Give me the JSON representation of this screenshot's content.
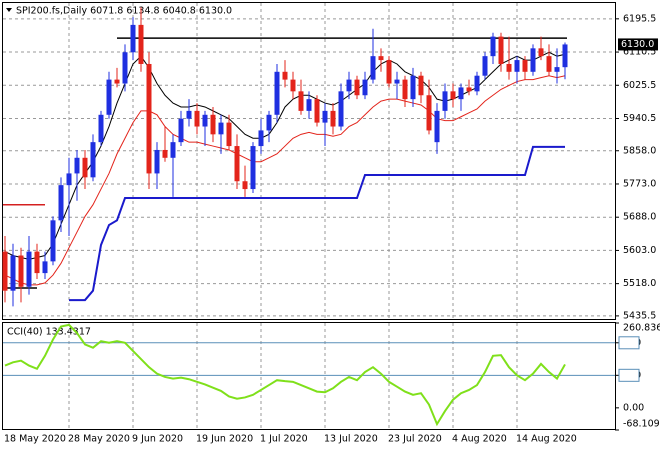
{
  "chart_data": [
    {
      "type": "candlestick",
      "title": "SPI200.fs,Daily  6071.8 6134.8 6040.8 6130.0",
      "up_color": "#1f2fe0",
      "down_color": "#e3241b",
      "categories": [
        "18 May 2020",
        null,
        null,
        null,
        null,
        null,
        null,
        null,
        "28 May 2020",
        null,
        null,
        null,
        null,
        null,
        null,
        null,
        "9 Jun 2020",
        null,
        null,
        null,
        null,
        null,
        null,
        null,
        "19 Jun 2020",
        null,
        null,
        null,
        null,
        null,
        null,
        null,
        "1 Jul 2020",
        null,
        null,
        null,
        null,
        null,
        null,
        null,
        "13 Jul 2020",
        null,
        null,
        null,
        null,
        null,
        null,
        null,
        "23 Jul 2020",
        null,
        null,
        null,
        null,
        null,
        null,
        null,
        "4 Aug 2020",
        null,
        null,
        null,
        null,
        null,
        null,
        null,
        "14 Aug 2020",
        null,
        null,
        null,
        null,
        null,
        null
      ],
      "ohlc": [
        [
          5600,
          5640,
          5470,
          5500
        ],
        [
          5500,
          5620,
          5460,
          5590
        ],
        [
          5590,
          5610,
          5470,
          5510
        ],
        [
          5510,
          5640,
          5490,
          5600
        ],
        [
          5600,
          5620,
          5530,
          5545
        ],
        [
          5545,
          5600,
          5530,
          5575
        ],
        [
          5575,
          5690,
          5565,
          5680
        ],
        [
          5680,
          5790,
          5650,
          5770
        ],
        [
          5770,
          5840,
          5640,
          5800
        ],
        [
          5800,
          5860,
          5730,
          5840
        ],
        [
          5840,
          5860,
          5760,
          5790
        ],
        [
          5790,
          5900,
          5780,
          5880
        ],
        [
          5880,
          5960,
          5870,
          5950
        ],
        [
          5950,
          6060,
          5940,
          6040
        ],
        [
          6040,
          6070,
          6020,
          6030
        ],
        [
          6030,
          6130,
          6010,
          6110
        ],
        [
          6110,
          6200,
          6090,
          6180
        ],
        [
          6180,
          6225,
          6060,
          6080
        ],
        [
          6080,
          6110,
          5760,
          5800
        ],
        [
          5800,
          5880,
          5760,
          5860
        ],
        [
          5860,
          5920,
          5830,
          5840
        ],
        [
          5840,
          5900,
          5740,
          5880
        ],
        [
          5880,
          5960,
          5870,
          5940
        ],
        [
          5940,
          5990,
          5920,
          5960
        ],
        [
          5960,
          5980,
          5900,
          5920
        ],
        [
          5920,
          5960,
          5870,
          5950
        ],
        [
          5950,
          5970,
          5880,
          5900
        ],
        [
          5900,
          5950,
          5850,
          5930
        ],
        [
          5930,
          5950,
          5860,
          5870
        ],
        [
          5870,
          5900,
          5760,
          5780
        ],
        [
          5780,
          5820,
          5740,
          5760
        ],
        [
          5760,
          5880,
          5750,
          5870
        ],
        [
          5870,
          5940,
          5850,
          5910
        ],
        [
          5910,
          5960,
          5880,
          5950
        ],
        [
          5950,
          6080,
          5930,
          6060
        ],
        [
          6060,
          6090,
          6020,
          6040
        ],
        [
          6040,
          6060,
          5990,
          6010
        ],
        [
          6010,
          6040,
          5950,
          5960
        ],
        [
          5960,
          6010,
          5940,
          5990
        ],
        [
          5990,
          6000,
          5920,
          5930
        ],
        [
          5930,
          5980,
          5870,
          5960
        ],
        [
          5960,
          5980,
          5900,
          5920
        ],
        [
          5920,
          6030,
          5910,
          6010
        ],
        [
          6010,
          6060,
          5990,
          6040
        ],
        [
          6040,
          6050,
          5990,
          6000
        ],
        [
          6000,
          6060,
          5990,
          6040
        ],
        [
          6040,
          6170,
          6030,
          6100
        ],
        [
          6100,
          6120,
          6060,
          6090
        ],
        [
          6090,
          6100,
          6020,
          6030
        ],
        [
          6030,
          6060,
          5990,
          6040
        ],
        [
          6040,
          6050,
          5970,
          5990
        ],
        [
          5990,
          6070,
          5970,
          6050
        ],
        [
          6050,
          6060,
          5980,
          6000
        ],
        [
          6000,
          6040,
          5900,
          5910
        ],
        [
          5880,
          5980,
          5850,
          5960
        ],
        [
          5960,
          6030,
          5940,
          6010
        ],
        [
          6010,
          6030,
          5970,
          5990
        ],
        [
          5990,
          6030,
          5960,
          6020
        ],
        [
          6020,
          6040,
          6000,
          6010
        ],
        [
          6010,
          6060,
          6000,
          6050
        ],
        [
          6050,
          6110,
          6040,
          6100
        ],
        [
          6100,
          6160,
          6080,
          6150
        ],
        [
          6150,
          6160,
          6060,
          6080
        ],
        [
          6080,
          6150,
          6040,
          6060
        ],
        [
          6060,
          6100,
          6030,
          6090
        ],
        [
          6090,
          6100,
          6040,
          6060
        ],
        [
          6060,
          6130,
          6050,
          6120
        ],
        [
          6120,
          6150,
          6090,
          6100
        ],
        [
          6100,
          6130,
          6050,
          6060
        ],
        [
          6060,
          6120,
          6030,
          6072
        ],
        [
          6071.8,
          6134.8,
          6040.8,
          6130.0
        ]
      ],
      "series": [
        {
          "color": "#000000",
          "values": [
            5600,
            5590,
            5585,
            5580,
            5585,
            5590,
            5620,
            5670,
            5720,
            5770,
            5800,
            5830,
            5870,
            5920,
            5980,
            6030,
            6080,
            6100,
            6070,
            6030,
            6000,
            5980,
            5970,
            5970,
            5975,
            5970,
            5960,
            5950,
            5940,
            5920,
            5900,
            5890,
            5890,
            5900,
            5930,
            5970,
            5990,
            6000,
            6000,
            5990,
            5980,
            5975,
            5985,
            6000,
            6015,
            6030,
            6060,
            6080,
            6090,
            6080,
            6060,
            6050,
            6040,
            6020,
            5990,
            5985,
            5990,
            6000,
            6010,
            6020,
            6040,
            6060,
            6080,
            6090,
            6100,
            6090,
            6090,
            6100,
            6110,
            6100,
            6105
          ]
        },
        {
          "color": "#e3241b",
          "values": [
            5540,
            5530,
            5520,
            5515,
            5515,
            5520,
            5540,
            5570,
            5610,
            5650,
            5690,
            5720,
            5760,
            5800,
            5850,
            5890,
            5930,
            5960,
            5960,
            5950,
            5920,
            5900,
            5890,
            5880,
            5880,
            5875,
            5870,
            5865,
            5860,
            5850,
            5840,
            5830,
            5830,
            5840,
            5850,
            5870,
            5890,
            5900,
            5905,
            5900,
            5900,
            5895,
            5900,
            5920,
            5930,
            5950,
            5970,
            5985,
            5990,
            5990,
            5985,
            5980,
            5975,
            5960,
            5940,
            5935,
            5935,
            5945,
            5955,
            5965,
            5985,
            6000,
            6015,
            6025,
            6035,
            6040,
            6040,
            6045,
            6050,
            6045,
            6050
          ]
        },
        {
          "color": "#1a1acc",
          "values": [
            null,
            null,
            null,
            null,
            null,
            null,
            null,
            null,
            5476,
            5476,
            5476,
            5500,
            5617,
            5668,
            5680,
            5737,
            5737,
            5737,
            5737,
            5737,
            5737,
            5737,
            5737,
            5737,
            5737,
            5737,
            5737,
            5737,
            5737,
            5737,
            5737,
            5737,
            5737,
            5737,
            5737,
            5737,
            5737,
            5737,
            5737,
            5737,
            5737,
            5737,
            5737,
            5737,
            5737,
            5796,
            5796,
            5796,
            5796,
            5796,
            5796,
            5796,
            5796,
            5796,
            5796,
            5796,
            5796,
            5796,
            5796,
            5796,
            5796,
            5796,
            5796,
            5796,
            5796,
            5796,
            5868,
            5868,
            5868,
            5868,
            5868
          ]
        }
      ],
      "levels": [
        {
          "value": 6146,
          "color": "#000000"
        },
        {
          "value": 5720,
          "color": "#d42020"
        },
        {
          "value": 5507,
          "color": "#000000"
        }
      ],
      "price_label": {
        "value": 6130.0,
        "label": "6130.0"
      },
      "ylim": [
        5425,
        6236
      ],
      "yticks": [
        6195.5,
        6110.5,
        6025.5,
        5940.5,
        {
          "value": 5858.0,
          "label": "5858.0"
        },
        {
          "value": 5773.0,
          "label": "5773.0"
        },
        {
          "value": 5688.0,
          "label": "5688.0"
        },
        {
          "value": 5603.0,
          "label": "5603.0"
        },
        {
          "value": 5518.0,
          "label": "5518.0"
        },
        5435.5
      ],
      "grid": true
    },
    {
      "type": "line",
      "title": "CCI(40) 133.4317",
      "color": "#7fe01a",
      "values": [
        130,
        140,
        145,
        130,
        120,
        160,
        210,
        250,
        255,
        230,
        195,
        185,
        205,
        200,
        205,
        200,
        175,
        150,
        125,
        105,
        95,
        90,
        93,
        88,
        80,
        72,
        62,
        52,
        35,
        28,
        32,
        40,
        55,
        70,
        85,
        82,
        80,
        70,
        60,
        50,
        48,
        60,
        80,
        95,
        85,
        110,
        125,
        105,
        80,
        65,
        50,
        40,
        45,
        10,
        -50,
        -10,
        25,
        45,
        55,
        70,
        110,
        160,
        162,
        125,
        100,
        85,
        105,
        135,
        110,
        90,
        133.4317
      ],
      "levels": [
        200,
        100
      ],
      "level_color": "#5a8fb8",
      "ylim": [
        -68.1098,
        260.8362
      ],
      "yticks": [
        260.8362,
        200,
        100,
        {
          "value": 0,
          "label": "0.00"
        },
        -68.1098
      ]
    }
  ]
}
